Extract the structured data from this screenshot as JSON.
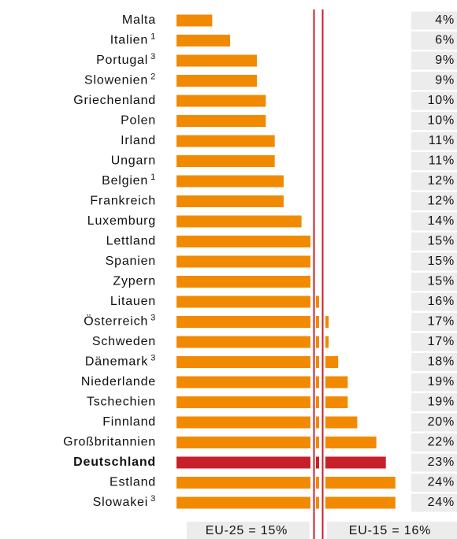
{
  "chart_data": {
    "type": "bar",
    "categories": [
      "Malta",
      "Italien",
      "Portugal",
      "Slowenien",
      "Griechenland",
      "Polen",
      "Irland",
      "Ungarn",
      "Belgien",
      "Frankreich",
      "Luxemburg",
      "Lettland",
      "Spanien",
      "Zypern",
      "Litauen",
      "Österreich",
      "Schweden",
      "Dänemark",
      "Niederlande",
      "Tschechien",
      "Finnland",
      "Großbritannien",
      "Deutschland",
      "Estland",
      "Slowakei"
    ],
    "notes": [
      null,
      "1",
      "3",
      "2",
      null,
      null,
      null,
      null,
      "1",
      null,
      null,
      null,
      null,
      null,
      null,
      "3",
      null,
      "3",
      null,
      null,
      null,
      null,
      null,
      null,
      "3"
    ],
    "values": [
      4,
      6,
      9,
      9,
      10,
      10,
      11,
      11,
      12,
      12,
      14,
      15,
      15,
      15,
      16,
      17,
      17,
      18,
      19,
      19,
      20,
      22,
      23,
      24,
      24
    ],
    "value_labels": [
      "4%",
      "6%",
      "9%",
      "9%",
      "10%",
      "10%",
      "11%",
      "11%",
      "12%",
      "12%",
      "14%",
      "15%",
      "15%",
      "15%",
      "16%",
      "17%",
      "17%",
      "18%",
      "19%",
      "19%",
      "20%",
      "22%",
      "23%",
      "24%",
      "24%"
    ],
    "colors": [
      "#f18a00",
      "#f18a00",
      "#f18a00",
      "#f18a00",
      "#f18a00",
      "#f18a00",
      "#f18a00",
      "#f18a00",
      "#f18a00",
      "#f18a00",
      "#f18a00",
      "#f18a00",
      "#f18a00",
      "#f18a00",
      "#f18a00",
      "#f18a00",
      "#f18a00",
      "#f18a00",
      "#f18a00",
      "#f18a00",
      "#f18a00",
      "#f18a00",
      "#c8202a",
      "#f18a00",
      "#f18a00"
    ],
    "bold": [
      false,
      false,
      false,
      false,
      false,
      false,
      false,
      false,
      false,
      false,
      false,
      false,
      false,
      false,
      false,
      false,
      false,
      false,
      false,
      false,
      false,
      false,
      true,
      false,
      false
    ],
    "reference_lines": [
      {
        "label": "EU-25 = 15%",
        "value": 15,
        "color": "#c8202a"
      },
      {
        "label": "EU-15 = 16%",
        "value": 16,
        "color": "#c8202a"
      }
    ]
  }
}
